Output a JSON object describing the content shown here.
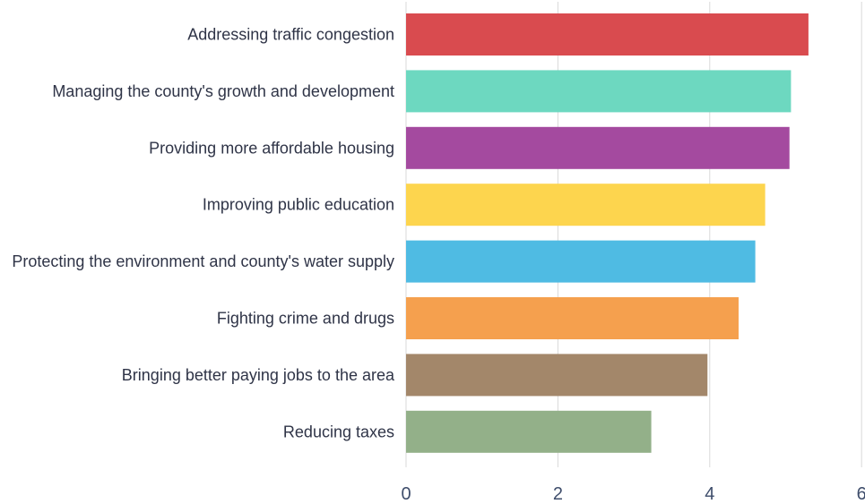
{
  "chart_data": {
    "type": "bar",
    "orientation": "horizontal",
    "categories": [
      "Addressing traffic congestion",
      "Managing the county's growth and development",
      "Providing more affordable housing",
      "Improving public education",
      "Protecting the environment and county's water supply",
      "Fighting crime and drugs",
      "Bringing better paying jobs to the area",
      "Reducing taxes"
    ],
    "values": [
      5.3,
      5.07,
      5.05,
      4.73,
      4.6,
      4.38,
      3.97,
      3.23
    ],
    "colors": [
      "#d94b4f",
      "#6dd8c0",
      "#a44a9f",
      "#fdd54e",
      "#4fbbe3",
      "#f5a04e",
      "#a3876a",
      "#93b089"
    ],
    "xlim": [
      0,
      6
    ],
    "xticks": [
      "0",
      "2",
      "4",
      "6"
    ],
    "grid": true,
    "legend": "none"
  }
}
